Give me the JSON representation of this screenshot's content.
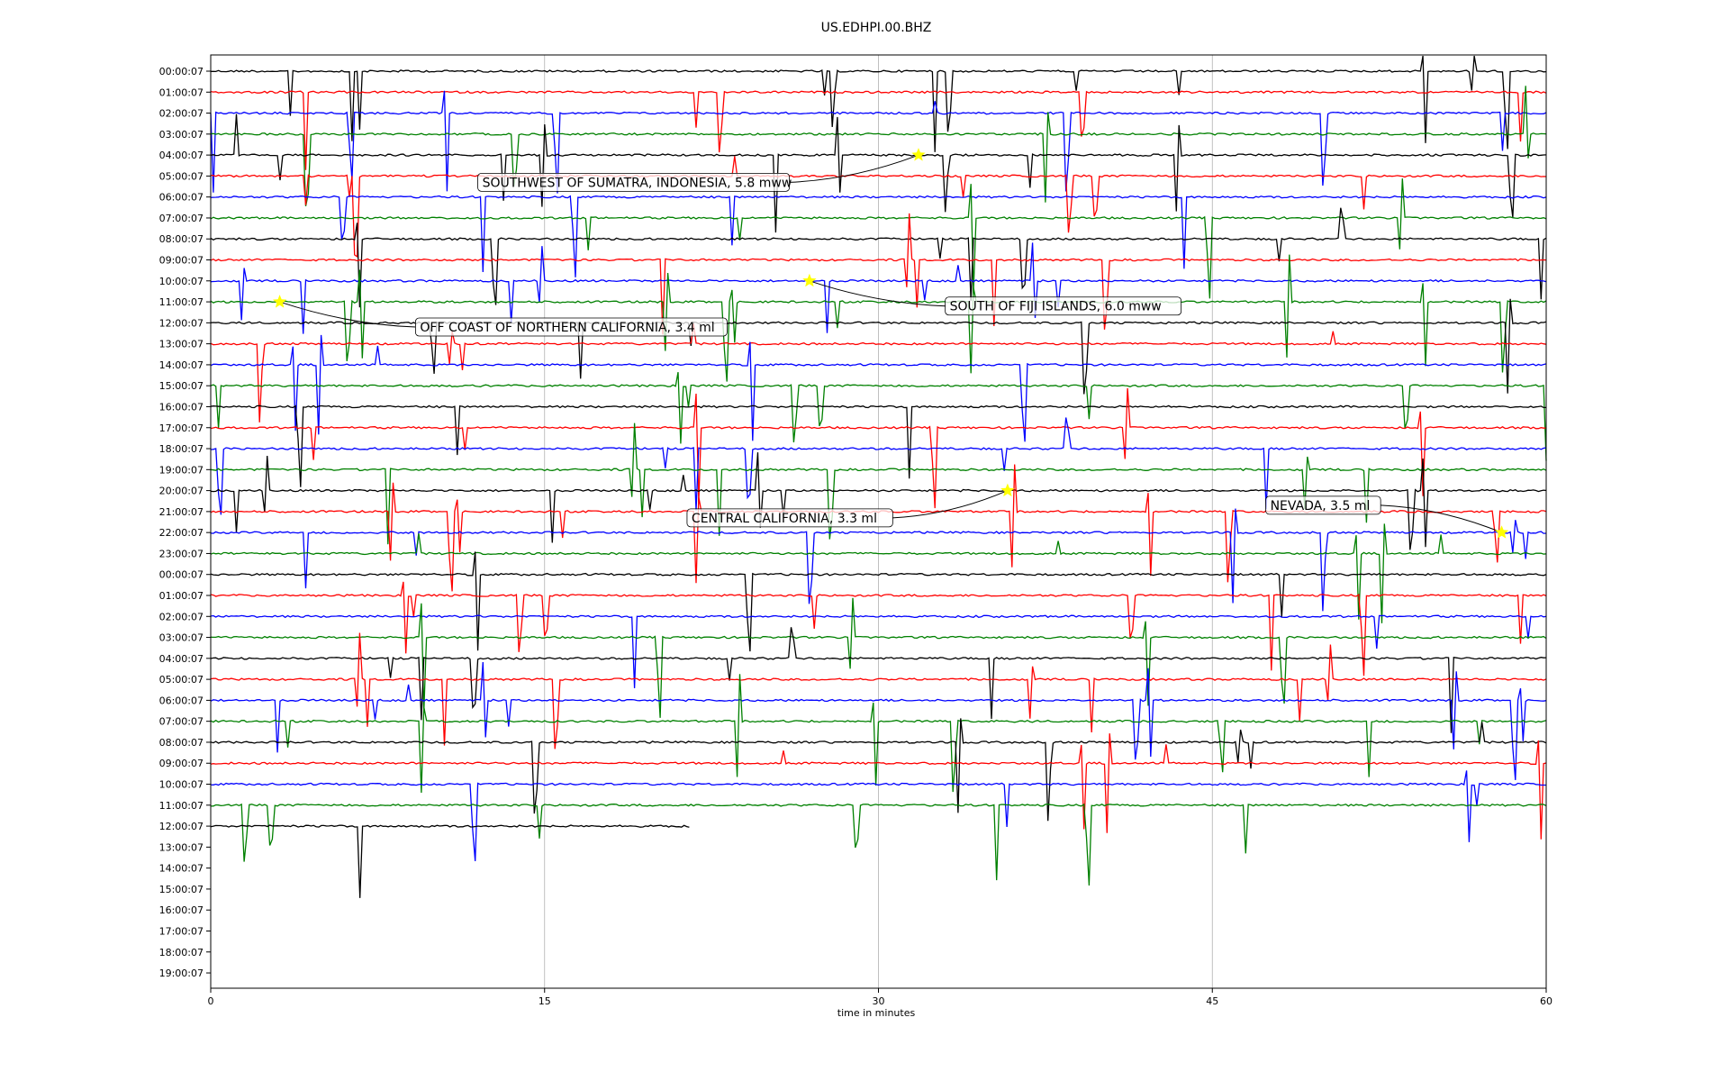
{
  "chart_data": {
    "type": "line",
    "title": "US.EDHPI.00.BHZ",
    "xlabel": "time in minutes",
    "xlim": [
      0,
      60
    ],
    "x_ticks": [
      0,
      15,
      30,
      45,
      60
    ],
    "grid_x": true,
    "grid_y": false,
    "y_tick_labels": [
      "00:00:07",
      "01:00:07",
      "02:00:07",
      "03:00:07",
      "04:00:07",
      "05:00:07",
      "06:00:07",
      "07:00:07",
      "08:00:07",
      "09:00:07",
      "10:00:07",
      "11:00:07",
      "12:00:07",
      "13:00:07",
      "14:00:07",
      "15:00:07",
      "16:00:07",
      "17:00:07",
      "18:00:07",
      "19:00:07",
      "20:00:07",
      "21:00:07",
      "22:00:07",
      "23:00:07",
      "00:00:07",
      "01:00:07",
      "02:00:07",
      "03:00:07",
      "04:00:07",
      "05:00:07",
      "06:00:07",
      "07:00:07",
      "08:00:07",
      "09:00:07",
      "10:00:07",
      "11:00:07",
      "12:00:07",
      "13:00:07",
      "14:00:07",
      "15:00:07",
      "16:00:07",
      "17:00:07",
      "18:00:07",
      "19:00:07"
    ],
    "trace_colors": [
      "#000000",
      "#ff0000",
      "#0000ff",
      "#008000"
    ],
    "trace_count": 37,
    "event_marker_color": "#ffff00",
    "events": [
      {
        "label": "SOUTHWEST OF SUMATRA, INDONESIA, 5.8 mww",
        "minute": 31.8,
        "row": 4,
        "label_minute": 12.0,
        "label_row": 5.3
      },
      {
        "label": "SOUTH OF FIJI ISLANDS, 6.0 mww",
        "minute": 26.9,
        "row": 10,
        "label_minute": 33.0,
        "label_row": 11.2
      },
      {
        "label": "OFF COAST OF NORTHERN CALIFORNIA, 3.4 ml",
        "minute": 3.1,
        "row": 11,
        "label_minute": 9.2,
        "label_row": 12.2
      },
      {
        "label": "CENTRAL CALIFORNIA, 3.3 ml",
        "minute": 35.8,
        "row": 20,
        "label_minute": 21.4,
        "label_row": 21.3
      },
      {
        "label": "NEVADA, 3.5 ml",
        "minute": 58.0,
        "row": 22,
        "label_minute": 47.4,
        "label_row": 20.7
      }
    ]
  }
}
